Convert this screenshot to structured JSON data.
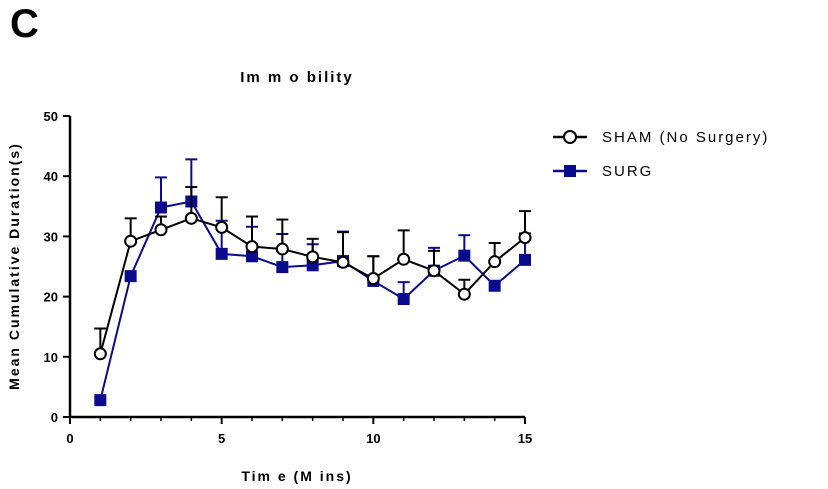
{
  "panel_label": "C",
  "chart_data": {
    "type": "line",
    "title": "Im m o bility",
    "xlabel": "Tim e (M ins)",
    "ylabel": "Mean Cumulative Duration(s)",
    "xlim": [
      0,
      15
    ],
    "ylim": [
      0,
      50
    ],
    "xticks": [
      "0",
      "5",
      "10",
      "15"
    ],
    "yticks": [
      "0",
      "10",
      "20",
      "30",
      "40",
      "50"
    ],
    "grid": false,
    "legend_position": "right",
    "x": [
      1,
      2,
      3,
      4,
      5,
      6,
      7,
      8,
      9,
      10,
      11,
      12,
      13,
      14,
      15
    ],
    "series": [
      {
        "name": "SHAM (No Surgery)",
        "color": "#000000",
        "marker": "open-circle",
        "values": [
          10.5,
          29.2,
          31.1,
          33.0,
          31.5,
          28.3,
          27.9,
          26.6,
          25.7,
          23.0,
          26.2,
          24.3,
          20.4,
          25.8,
          29.8
        ],
        "error": [
          4.2,
          3.8,
          2.2,
          5.2,
          5.0,
          5.0,
          4.9,
          3.0,
          5.0,
          3.7,
          4.8,
          3.3,
          2.4,
          3.1,
          4.4
        ]
      },
      {
        "name": "SURG",
        "color": "#0a0a8c",
        "marker": "filled-square",
        "values": [
          2.8,
          23.4,
          34.8,
          35.8,
          27.1,
          26.7,
          24.9,
          25.2,
          25.9,
          22.6,
          19.6,
          24.3,
          26.8,
          21.8,
          26.1
        ],
        "error": [
          0.0,
          0.0,
          5.0,
          7.0,
          5.5,
          4.9,
          5.5,
          3.5,
          4.9,
          4.1,
          2.8,
          3.8,
          3.4,
          0.0,
          4.4
        ]
      }
    ]
  }
}
